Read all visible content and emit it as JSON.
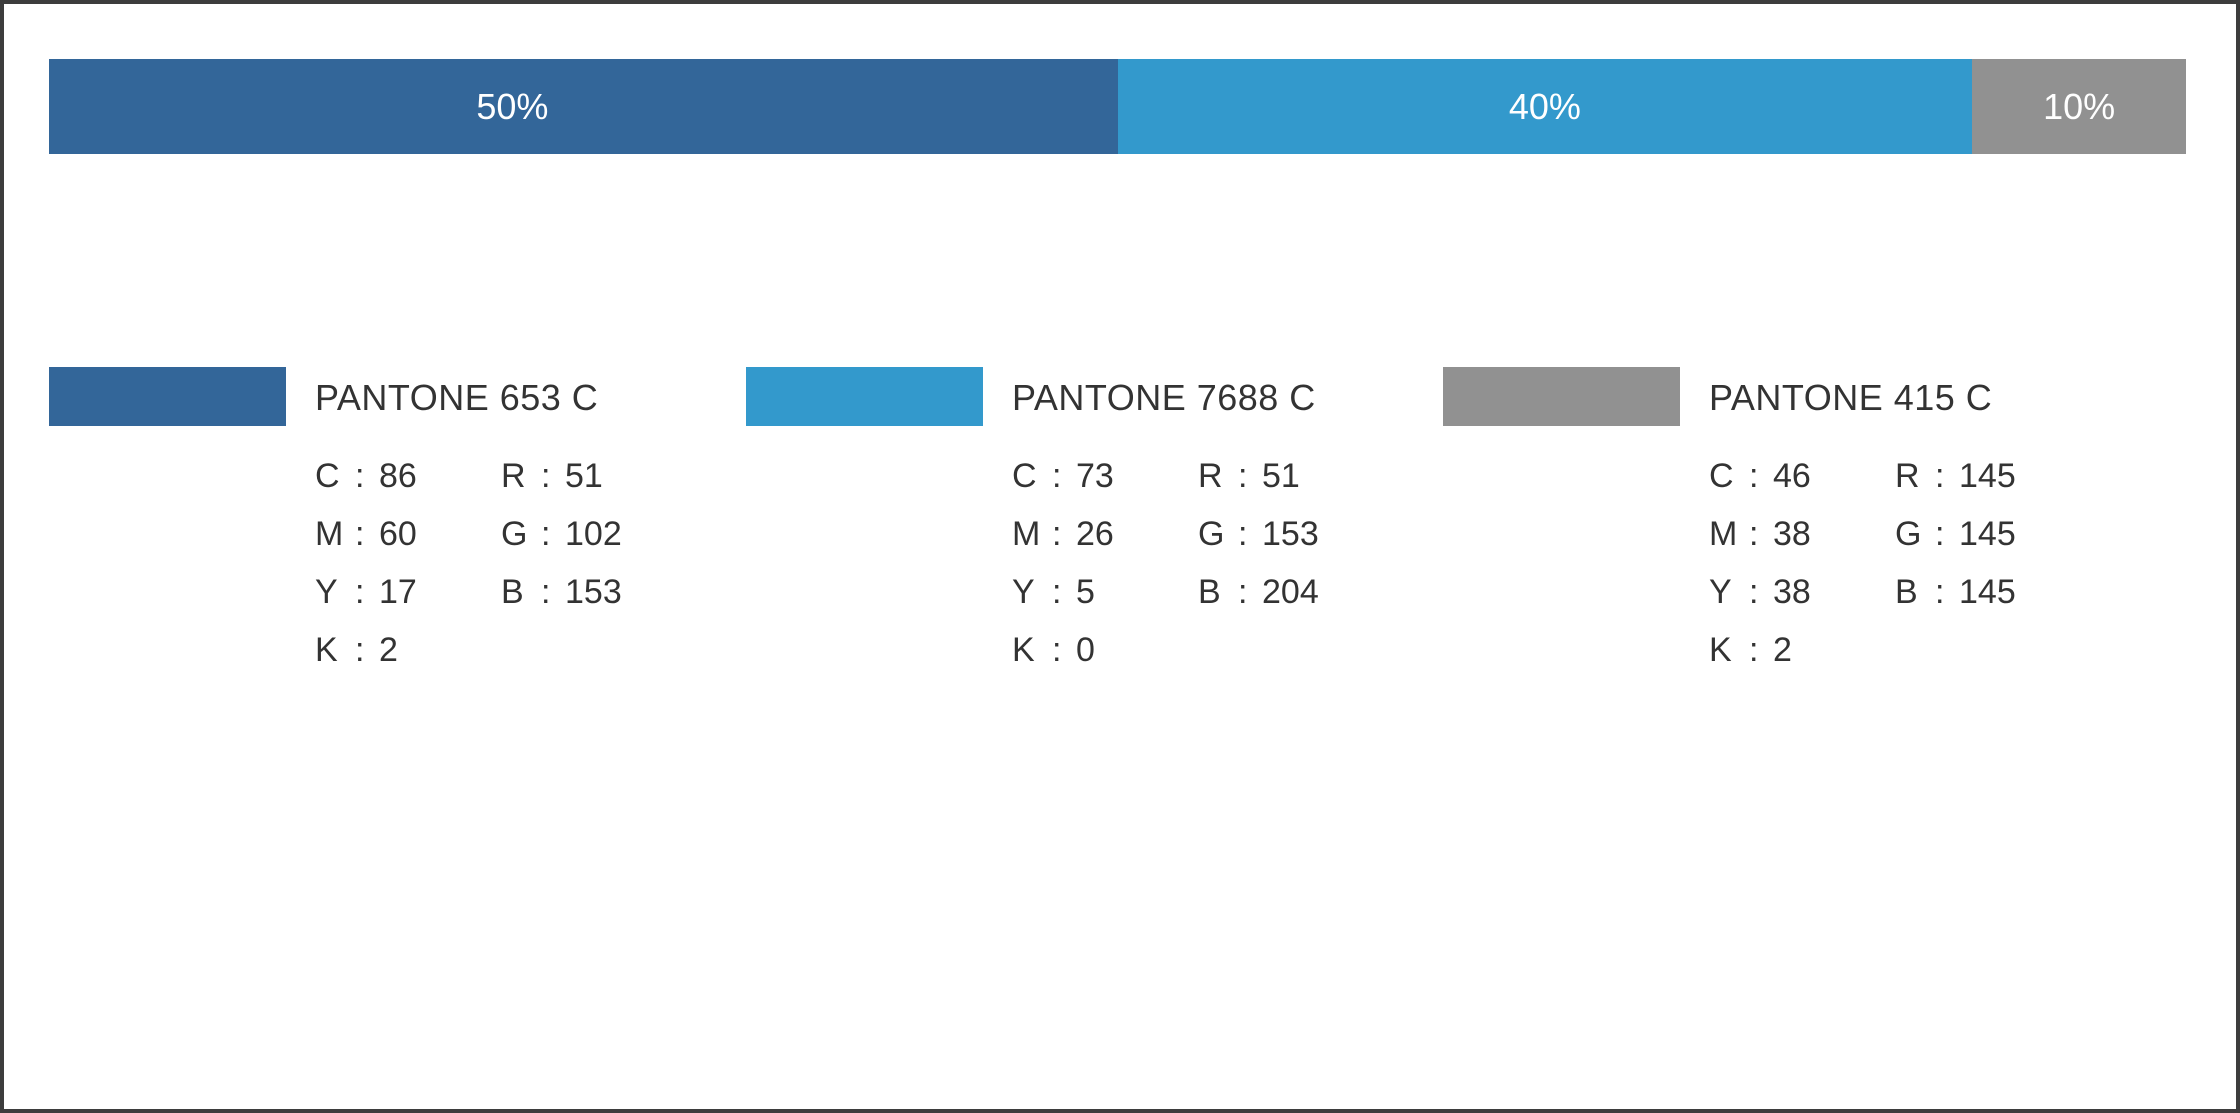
{
  "frame_color": "#3d3d3d",
  "ratio_bar": [
    {
      "label": "50%",
      "fraction": 0.5,
      "color": "#336699",
      "text_align": "right-of-center"
    },
    {
      "label": "40%",
      "fraction": 0.4,
      "color": "#3399cc"
    },
    {
      "label": "10%",
      "fraction": 0.1,
      "color": "#919191"
    }
  ],
  "swatches": [
    {
      "name": "PANTONE 653 C",
      "color": "#336699",
      "cmyk": [
        {
          "k": "C",
          "v": "86"
        },
        {
          "k": "M",
          "v": "60"
        },
        {
          "k": "Y",
          "v": "17"
        },
        {
          "k": "K",
          "v": "2"
        }
      ],
      "rgb": [
        {
          "k": "R",
          "v": "51"
        },
        {
          "k": "G",
          "v": "102"
        },
        {
          "k": "B",
          "v": "153"
        }
      ]
    },
    {
      "name": "PANTONE 7688 C",
      "color": "#3399cc",
      "cmyk": [
        {
          "k": "C",
          "v": "73"
        },
        {
          "k": "M",
          "v": "26"
        },
        {
          "k": "Y",
          "v": "5"
        },
        {
          "k": "K",
          "v": "0"
        }
      ],
      "rgb": [
        {
          "k": "R",
          "v": "51"
        },
        {
          "k": "G",
          "v": "153"
        },
        {
          "k": "B",
          "v": "204"
        }
      ]
    },
    {
      "name": "PANTONE 415 C",
      "color": "#919191",
      "cmyk": [
        {
          "k": "C",
          "v": "46"
        },
        {
          "k": "M",
          "v": "38"
        },
        {
          "k": "Y",
          "v": "38"
        },
        {
          "k": "K",
          "v": "2"
        }
      ],
      "rgb": [
        {
          "k": "R",
          "v": "145"
        },
        {
          "k": "G",
          "v": "145"
        },
        {
          "k": "B",
          "v": "145"
        }
      ]
    }
  ]
}
